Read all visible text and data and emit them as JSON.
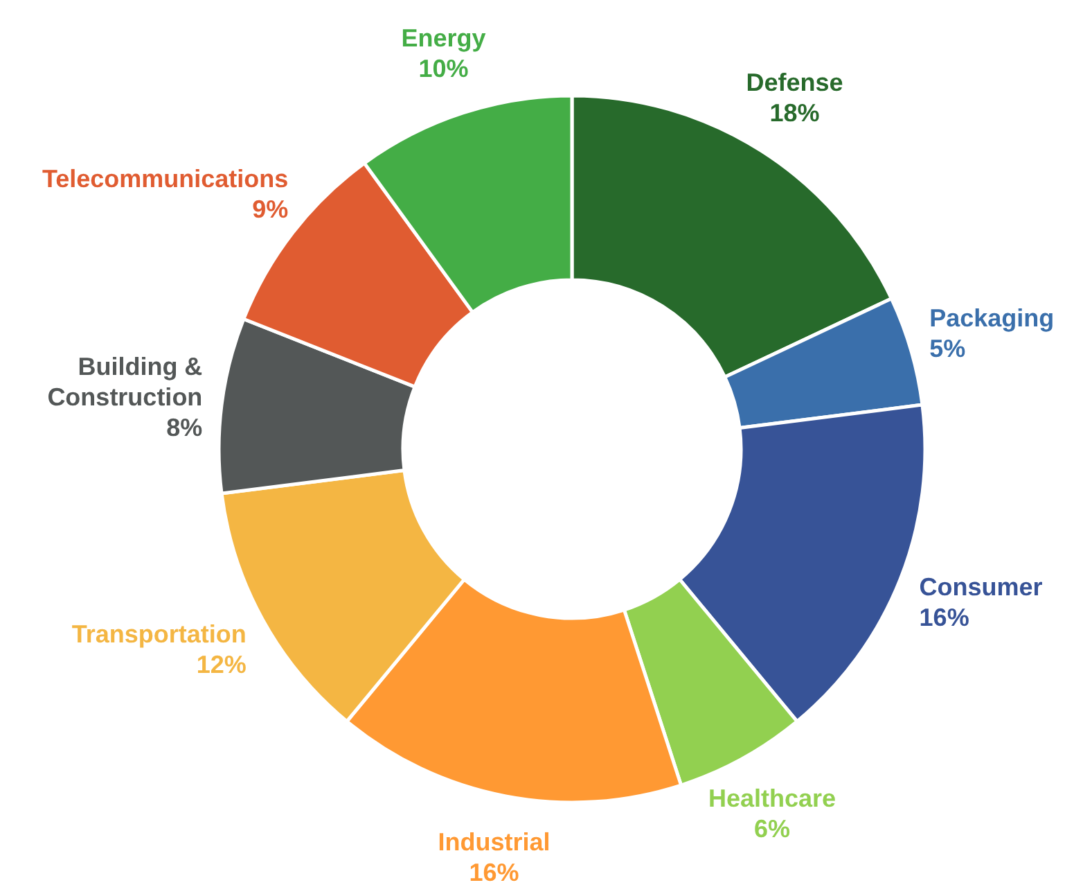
{
  "chart_data": {
    "type": "donut",
    "categories": [
      "Defense",
      "Packaging",
      "Consumer",
      "Healthcare",
      "Industrial",
      "Transportation",
      "Building & Construction",
      "Telecommunications",
      "Energy"
    ],
    "values": [
      18,
      5,
      16,
      6,
      16,
      12,
      8,
      9,
      10
    ],
    "colors": [
      "#276a2b",
      "#3a6fab",
      "#375397",
      "#92d050",
      "#ff9933",
      "#f4b643",
      "#535757",
      "#e05c31",
      "#44ad46"
    ],
    "value_labels": [
      "18%",
      "5%",
      "16%",
      "6%",
      "16%",
      "12%",
      "8%",
      "9%",
      "10%"
    ]
  }
}
